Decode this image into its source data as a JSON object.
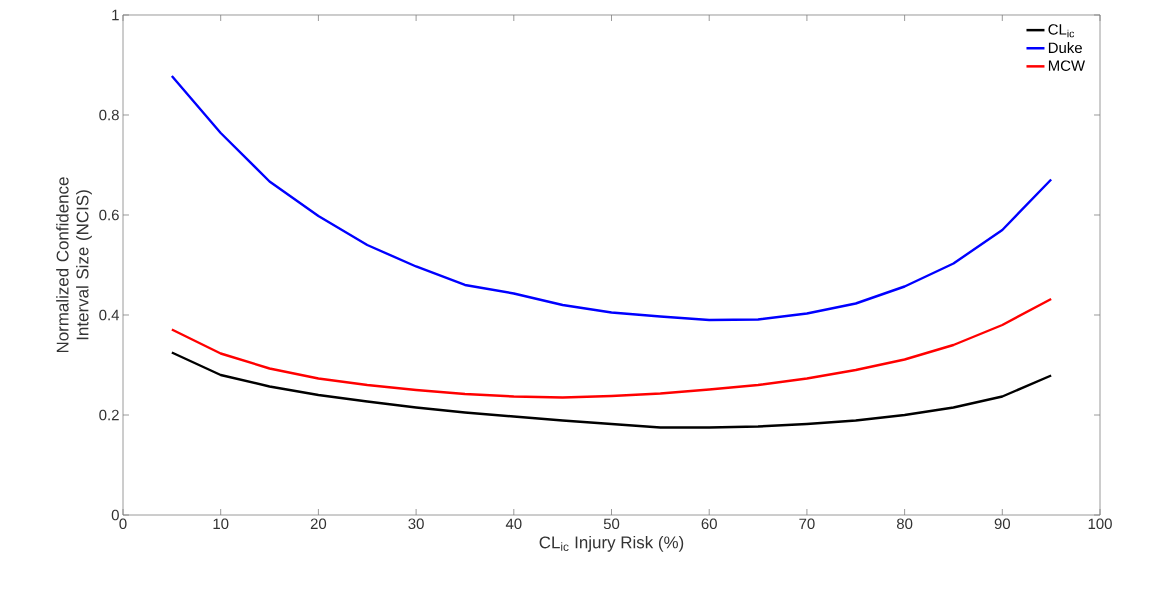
{
  "chart_data": {
    "type": "line",
    "xlabel": "CL$_{ic}$ Injury Risk (%)",
    "ylabel": "Normalized Confidence Interval Size (NCIS)",
    "x": [
      5,
      10,
      15,
      20,
      25,
      30,
      35,
      40,
      45,
      50,
      55,
      60,
      65,
      70,
      75,
      80,
      85,
      90,
      95
    ],
    "series": [
      {
        "name": "CL$_{ic}$",
        "color": "#000000",
        "values": [
          0.325,
          0.28,
          0.257,
          0.24,
          0.227,
          0.215,
          0.205,
          0.197,
          0.189,
          0.182,
          0.175,
          0.175,
          0.177,
          0.182,
          0.189,
          0.2,
          0.215,
          0.237,
          0.279
        ]
      },
      {
        "name": "Duke",
        "color": "#0000ff",
        "values": [
          0.878,
          0.764,
          0.667,
          0.598,
          0.54,
          0.497,
          0.46,
          0.443,
          0.42,
          0.405,
          0.397,
          0.39,
          0.391,
          0.403,
          0.423,
          0.457,
          0.503,
          0.57,
          0.671
        ]
      },
      {
        "name": "MCW",
        "color": "#ff0000",
        "values": [
          0.371,
          0.323,
          0.293,
          0.273,
          0.26,
          0.25,
          0.242,
          0.237,
          0.235,
          0.238,
          0.243,
          0.251,
          0.26,
          0.273,
          0.29,
          0.311,
          0.34,
          0.38,
          0.432
        ]
      }
    ],
    "xlim": [
      0,
      100
    ],
    "xticks": [
      0,
      10,
      20,
      30,
      40,
      50,
      60,
      70,
      80,
      90,
      100
    ],
    "ylim": [
      0,
      1
    ],
    "yticks": [
      0,
      0.2,
      0.4,
      0.6,
      0.8,
      1
    ],
    "grid": false,
    "legend": "top right",
    "marker": "none",
    "line_style": "solid"
  }
}
